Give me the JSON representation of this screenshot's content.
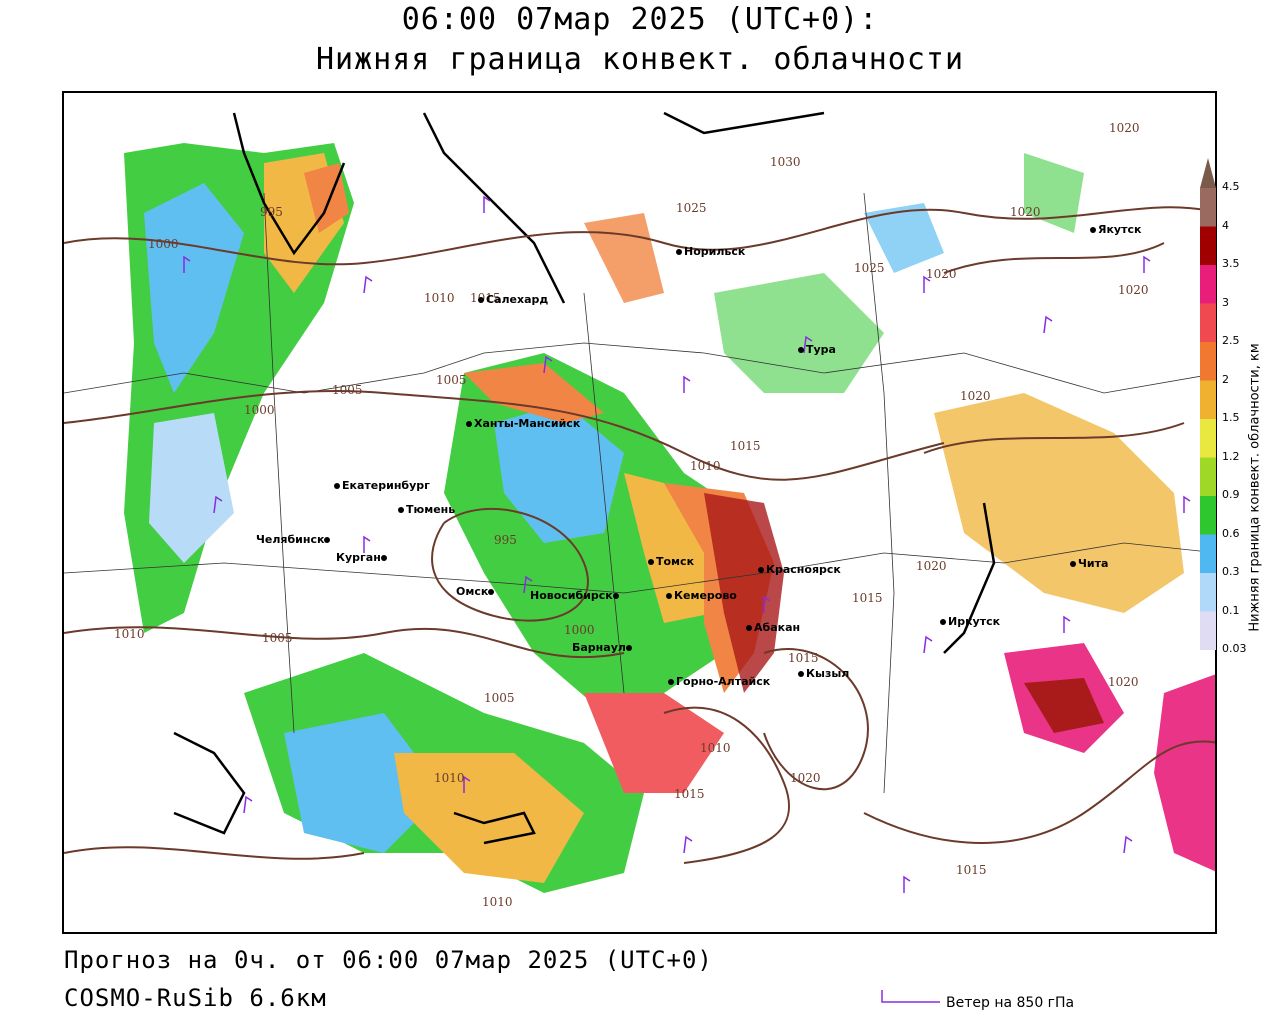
{
  "header": {
    "title_line1": "06:00 07мар 2025 (UTC+0):",
    "title_line2": "Нижняя граница конвект. облачности"
  },
  "footer": {
    "forecast": "Прогноз на 0ч. от 06:00 07мар 2025 (UTC+0)",
    "model": "COSMO-RuSib 6.6км",
    "wind_key": "Ветер на 850 гПа"
  },
  "legend": {
    "title": "Нижняя граница конвект. облачности, км",
    "levels": [
      "0.03",
      "0.1",
      "0.3",
      "0.6",
      "0.9",
      "1.2",
      "1.5",
      "2",
      "2.5",
      "3",
      "3.5",
      "4",
      "4.5"
    ],
    "colors": [
      "#e0dcf4",
      "#b0d8f8",
      "#4fb8f0",
      "#2ec82e",
      "#a0d828",
      "#e8e840",
      "#f0b030",
      "#f07830",
      "#f04a50",
      "#e81e7a",
      "#a00000",
      "#9a6a60",
      "#7a5a4a"
    ]
  },
  "cities": [
    {
      "name": "Якутск"
    },
    {
      "name": "Норильск"
    },
    {
      "name": "Салехард"
    },
    {
      "name": "Тура"
    },
    {
      "name": "Ханты-Мансийск"
    },
    {
      "name": "Екатеринбург"
    },
    {
      "name": "Тюмень"
    },
    {
      "name": "Челябинск"
    },
    {
      "name": "Курган"
    },
    {
      "name": "Омск"
    },
    {
      "name": "Новосибирск"
    },
    {
      "name": "Томск"
    },
    {
      "name": "Кемерово"
    },
    {
      "name": "Красноярск"
    },
    {
      "name": "Абакан"
    },
    {
      "name": "Барнаул"
    },
    {
      "name": "Кызыл"
    },
    {
      "name": "Горно-Алтайск"
    },
    {
      "name": "Иркутск"
    },
    {
      "name": "Чита"
    }
  ],
  "isobars": [
    "1030",
    "1025",
    "1025",
    "1020",
    "1020",
    "1020",
    "1020",
    "1020",
    "1020",
    "1020",
    "1020",
    "1015",
    "1015",
    "1015",
    "1015",
    "1015",
    "1015",
    "1010",
    "1010",
    "1010",
    "1010",
    "1010",
    "1010",
    "1005",
    "1005",
    "1005",
    "1005",
    "1000",
    "1000",
    "1000",
    "995",
    "995"
  ]
}
